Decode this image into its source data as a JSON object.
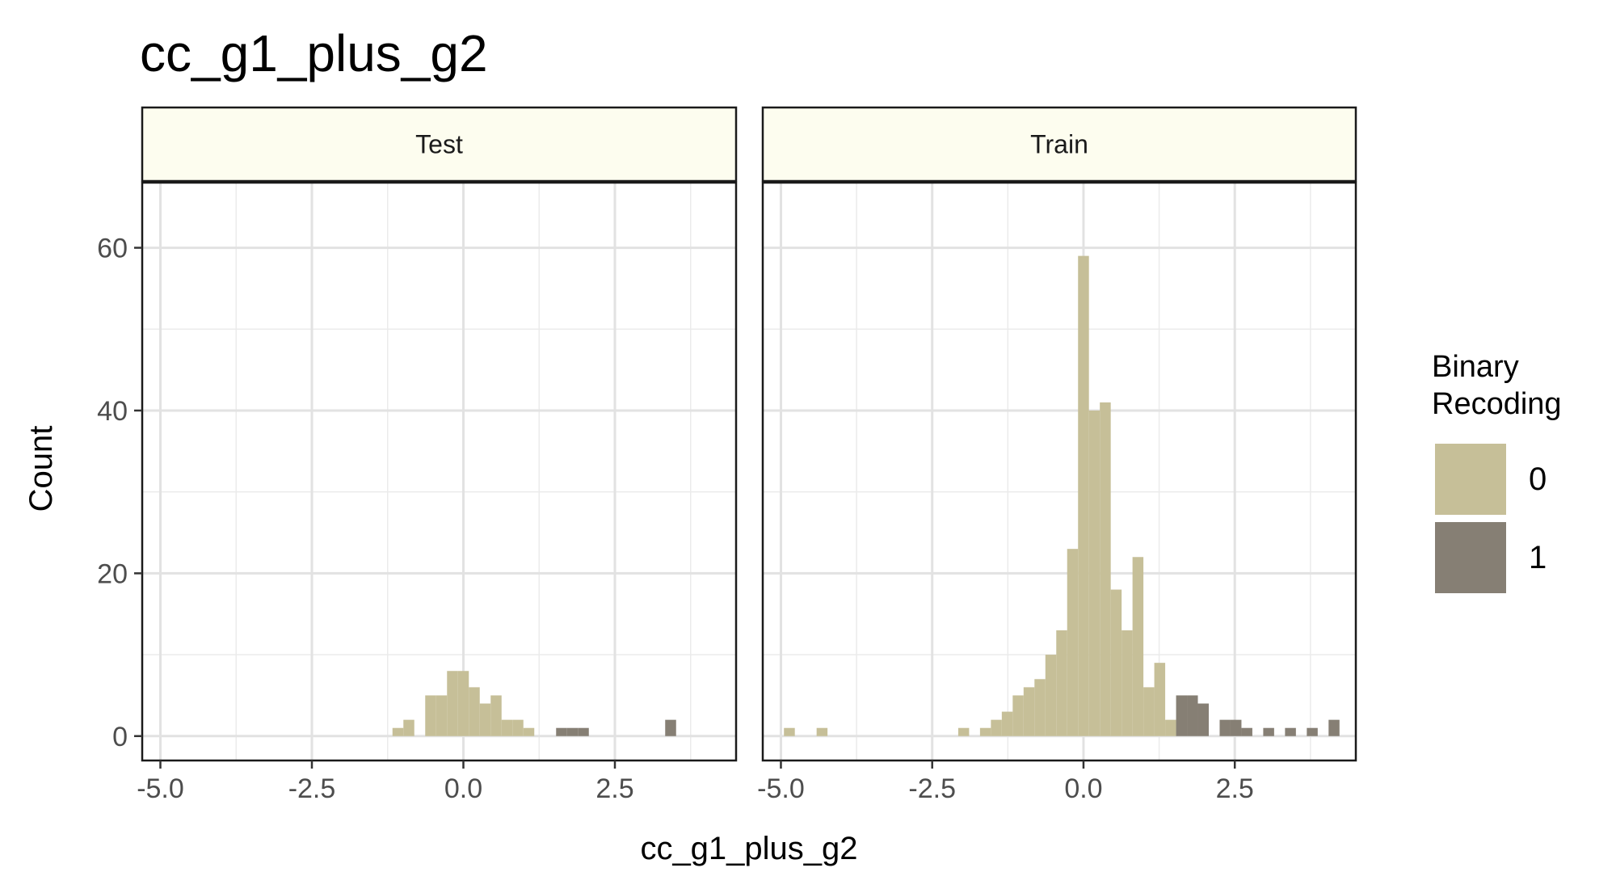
{
  "chart_data": {
    "type": "bar",
    "subtype": "faceted histogram",
    "title": "cc_g1_plus_g2",
    "xlabel": "cc_g1_plus_g2",
    "ylabel": "Count",
    "xlim": [
      -5.3,
      4.5
    ],
    "ylim": [
      -3,
      68
    ],
    "x_ticks": [
      -5.0,
      -2.5,
      0.0,
      2.5
    ],
    "x_tick_labels": [
      "-5.0",
      "-2.5",
      "0.0",
      "2.5"
    ],
    "y_ticks": [
      0,
      20,
      40,
      60
    ],
    "y_tick_labels": [
      "0",
      "20",
      "40",
      "60"
    ],
    "bin_width": 0.18,
    "grid": true,
    "legend": {
      "title_lines": [
        "Binary",
        "Recoding"
      ],
      "position": "right",
      "entries": [
        {
          "label": "0",
          "color": "#c6bf98"
        },
        {
          "label": "1",
          "color": "#867f74"
        }
      ]
    },
    "facets": [
      {
        "label": "Test",
        "bars": [
          {
            "x": -1.08,
            "count": 1,
            "group": "0"
          },
          {
            "x": -0.9,
            "count": 2,
            "group": "0"
          },
          {
            "x": -0.54,
            "count": 5,
            "group": "0"
          },
          {
            "x": -0.36,
            "count": 5,
            "group": "0"
          },
          {
            "x": -0.18,
            "count": 8,
            "group": "0"
          },
          {
            "x": 0.0,
            "count": 8,
            "group": "0"
          },
          {
            "x": 0.18,
            "count": 6,
            "group": "0"
          },
          {
            "x": 0.36,
            "count": 4,
            "group": "0"
          },
          {
            "x": 0.54,
            "count": 5,
            "group": "0"
          },
          {
            "x": 0.72,
            "count": 2,
            "group": "0"
          },
          {
            "x": 0.9,
            "count": 2,
            "group": "0"
          },
          {
            "x": 1.08,
            "count": 1,
            "group": "0"
          },
          {
            "x": 1.62,
            "count": 1,
            "group": "1"
          },
          {
            "x": 1.8,
            "count": 1,
            "group": "1"
          },
          {
            "x": 1.98,
            "count": 1,
            "group": "1"
          },
          {
            "x": 3.42,
            "count": 2,
            "group": "1"
          }
        ]
      },
      {
        "label": "Train",
        "bars": [
          {
            "x": -4.86,
            "count": 1,
            "group": "0"
          },
          {
            "x": -4.32,
            "count": 1,
            "group": "0"
          },
          {
            "x": -1.98,
            "count": 1,
            "group": "0"
          },
          {
            "x": -1.62,
            "count": 1,
            "group": "0"
          },
          {
            "x": -1.44,
            "count": 2,
            "group": "0"
          },
          {
            "x": -1.26,
            "count": 3,
            "group": "0"
          },
          {
            "x": -1.08,
            "count": 5,
            "group": "0"
          },
          {
            "x": -0.9,
            "count": 6,
            "group": "0"
          },
          {
            "x": -0.72,
            "count": 7,
            "group": "0"
          },
          {
            "x": -0.54,
            "count": 10,
            "group": "0"
          },
          {
            "x": -0.36,
            "count": 13,
            "group": "0"
          },
          {
            "x": -0.18,
            "count": 23,
            "group": "0"
          },
          {
            "x": 0.0,
            "count": 59,
            "group": "0"
          },
          {
            "x": 0.18,
            "count": 40,
            "group": "0"
          },
          {
            "x": 0.36,
            "count": 41,
            "group": "0"
          },
          {
            "x": 0.54,
            "count": 18,
            "group": "0"
          },
          {
            "x": 0.72,
            "count": 13,
            "group": "0"
          },
          {
            "x": 0.9,
            "count": 22,
            "group": "0"
          },
          {
            "x": 1.08,
            "count": 6,
            "group": "0"
          },
          {
            "x": 1.26,
            "count": 9,
            "group": "0"
          },
          {
            "x": 1.44,
            "count": 2,
            "group": "0"
          },
          {
            "x": 1.62,
            "count": 5,
            "group": "1"
          },
          {
            "x": 1.8,
            "count": 5,
            "group": "1"
          },
          {
            "x": 1.98,
            "count": 4,
            "group": "1"
          },
          {
            "x": 2.34,
            "count": 2,
            "group": "1"
          },
          {
            "x": 2.52,
            "count": 2,
            "group": "1"
          },
          {
            "x": 2.7,
            "count": 1,
            "group": "1"
          },
          {
            "x": 3.06,
            "count": 1,
            "group": "1"
          },
          {
            "x": 3.42,
            "count": 1,
            "group": "1"
          },
          {
            "x": 3.78,
            "count": 1,
            "group": "1"
          },
          {
            "x": 4.14,
            "count": 2,
            "group": "1"
          }
        ]
      }
    ]
  }
}
